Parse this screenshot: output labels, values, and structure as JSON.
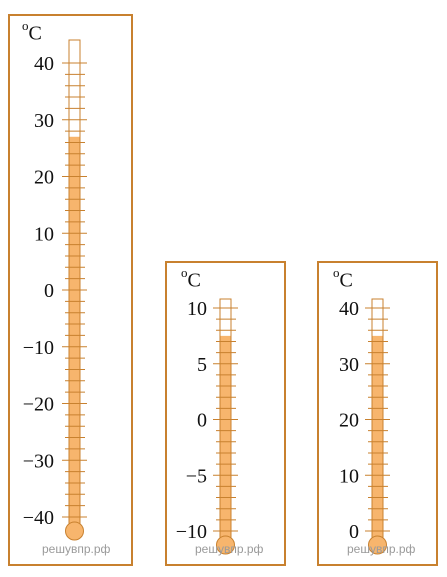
{
  "thermometers": [
    {
      "id": "t1",
      "unit_label": "°C",
      "labels": [
        {
          "value": 40,
          "text": "40"
        },
        {
          "value": 30,
          "text": "30"
        },
        {
          "value": 20,
          "text": "20"
        },
        {
          "value": 10,
          "text": "10"
        },
        {
          "value": 0,
          "text": "0"
        },
        {
          "value": -10,
          "text": "−10"
        },
        {
          "value": -20,
          "text": "−20"
        },
        {
          "value": -30,
          "text": "−30"
        },
        {
          "value": -40,
          "text": "−40"
        }
      ],
      "range": [
        -40,
        40
      ],
      "tick_step": 2,
      "reading": 27,
      "watermark": "решувпр.рф"
    },
    {
      "id": "t2",
      "unit_label": "°C",
      "labels": [
        {
          "value": 10,
          "text": "10"
        },
        {
          "value": 5,
          "text": "5"
        },
        {
          "value": 0,
          "text": "0"
        },
        {
          "value": -5,
          "text": "−5"
        },
        {
          "value": -10,
          "text": "−10"
        }
      ],
      "range": [
        -10,
        10
      ],
      "tick_step": 1,
      "reading": 7.5,
      "watermark": "решувпр.рф"
    },
    {
      "id": "t3",
      "unit_label": "°C",
      "labels": [
        {
          "value": 40,
          "text": "40"
        },
        {
          "value": 30,
          "text": "30"
        },
        {
          "value": 20,
          "text": "20"
        },
        {
          "value": 10,
          "text": "10"
        },
        {
          "value": 0,
          "text": "0"
        }
      ],
      "range": [
        0,
        40
      ],
      "tick_step": 2,
      "reading": 35,
      "watermark": "решувпр.рф"
    }
  ],
  "colors": {
    "frame": "#c8812f",
    "mercury": "#f7b56d",
    "tick": "#c8812f"
  }
}
